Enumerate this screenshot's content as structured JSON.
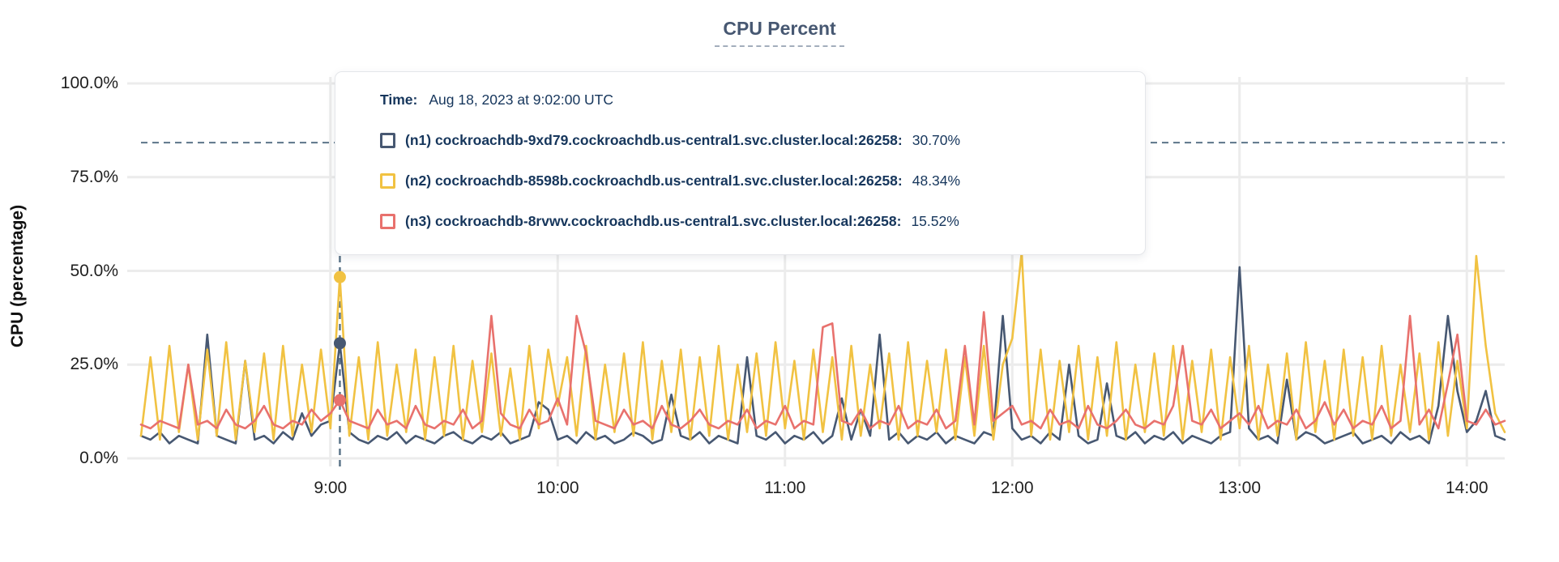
{
  "title": "CPU Percent",
  "y_axis": {
    "label": "CPU (percentage)",
    "ticks": [
      "0.0%",
      "25.0%",
      "50.0%",
      "75.0%",
      "100.0%"
    ]
  },
  "x_axis": {
    "ticks": [
      "9:00",
      "10:00",
      "11:00",
      "12:00",
      "13:00",
      "14:00"
    ]
  },
  "tooltip": {
    "time_label": "Time:",
    "time_value": "Aug 18, 2023 at 9:02:00 UTC",
    "rows": [
      {
        "series": "n1",
        "label": "(n1) cockroachdb-9xd79.cockroachdb.us-central1.svc.cluster.local:26258:",
        "value": "30.70%",
        "color": "#475872"
      },
      {
        "series": "n2",
        "label": "(n2) cockroachdb-8598b.cockroachdb.us-central1.svc.cluster.local:26258:",
        "value": "48.34%",
        "color": "#F1C242"
      },
      {
        "series": "n3",
        "label": "(n3) cockroachdb-8rvwv.cockroachdb.us-central1.svc.cluster.local:26258:",
        "value": "15.52%",
        "color": "#E8716D"
      }
    ]
  },
  "colors": {
    "title": "#475872",
    "grid": "#ececec",
    "crosshair": "#5c7589",
    "tooltip_text": "#16365c",
    "series_n1": "#475872",
    "series_n2": "#F1C242",
    "series_n3": "#E8716D"
  },
  "chart_data": {
    "type": "line",
    "title": "CPU Percent",
    "xlabel": "",
    "ylabel": "CPU (percentage)",
    "ylim": [
      0,
      100
    ],
    "grid": true,
    "legend_position": "tooltip-overlay",
    "x_start_time": "8:10",
    "x_end_time": "14:10",
    "x_step_minutes": 2.5,
    "x_tick_labels": [
      "9:00",
      "10:00",
      "11:00",
      "12:00",
      "13:00",
      "14:00"
    ],
    "x_tick_indices": [
      20,
      44,
      68,
      92,
      116,
      140
    ],
    "y_tick_values": [
      0,
      25,
      50,
      75,
      100
    ],
    "y_tick_labels": [
      "0.0%",
      "25.0%",
      "50.0%",
      "75.0%",
      "100.0%"
    ],
    "hover": {
      "index": 21,
      "time": "Aug 18, 2023 at 9:02:00 UTC",
      "values": {
        "n1": 30.7,
        "n2": 48.34,
        "n3": 15.52
      },
      "crosshair_y_percent": 84.2
    },
    "series": [
      {
        "name": "n1",
        "label": "(n1) cockroachdb-9xd79.cockroachdb.us-central1.svc.cluster.local:26258",
        "color": "#475872",
        "values": [
          6,
          5,
          7,
          4,
          6,
          5,
          4,
          33,
          6,
          5,
          4,
          26,
          5,
          6,
          4,
          7,
          5,
          12,
          6,
          9,
          10,
          30.7,
          7,
          5,
          4,
          6,
          5,
          7,
          4,
          6,
          5,
          4,
          6,
          7,
          5,
          4,
          6,
          5,
          7,
          4,
          5,
          6,
          15,
          13,
          5,
          6,
          4,
          7,
          5,
          6,
          4,
          5,
          7,
          6,
          4,
          5,
          17,
          6,
          5,
          7,
          4,
          6,
          5,
          4,
          27,
          6,
          5,
          7,
          4,
          6,
          5,
          7,
          4,
          6,
          16,
          5,
          13,
          6,
          33,
          5,
          7,
          4,
          6,
          5,
          7,
          4,
          6,
          5,
          4,
          7,
          6,
          38,
          8,
          5,
          6,
          4,
          7,
          5,
          25,
          6,
          4,
          5,
          20,
          6,
          5,
          7,
          4,
          6,
          5,
          7,
          4,
          6,
          5,
          4,
          6,
          7,
          51,
          8,
          5,
          6,
          4,
          21,
          5,
          7,
          6,
          4,
          5,
          6,
          7,
          4,
          5,
          6,
          4,
          7,
          5,
          6,
          4,
          14,
          38,
          18,
          7,
          10,
          18,
          6,
          5
        ]
      },
      {
        "name": "n2",
        "label": "(n2) cockroachdb-8598b.cockroachdb.us-central1.svc.cluster.local:26258",
        "color": "#F1C242",
        "values": [
          6,
          27,
          5,
          30,
          7,
          25,
          5,
          29,
          6,
          31,
          5,
          26,
          7,
          28,
          5,
          30,
          6,
          25,
          7,
          29,
          8,
          48.3,
          6,
          27,
          5,
          31,
          6,
          25,
          7,
          29,
          5,
          27,
          6,
          30,
          5,
          26,
          7,
          28,
          6,
          24,
          5,
          30,
          8,
          29,
          14,
          27,
          6,
          30,
          5,
          25,
          7,
          28,
          6,
          31,
          5,
          26,
          7,
          29,
          5,
          27,
          6,
          30,
          5,
          25,
          7,
          28,
          6,
          31,
          8,
          26,
          5,
          29,
          7,
          27,
          5,
          30,
          6,
          25,
          8,
          28,
          5,
          31,
          6,
          26,
          7,
          29,
          5,
          27,
          6,
          30,
          5,
          25,
          32,
          55,
          6,
          29,
          5,
          26,
          7,
          30,
          5,
          27,
          6,
          31,
          5,
          25,
          7,
          28,
          6,
          30,
          5,
          26,
          7,
          29,
          5,
          27,
          8,
          30,
          5,
          25,
          6,
          28,
          5,
          31,
          7,
          26,
          5,
          29,
          6,
          27,
          5,
          30,
          6,
          25,
          7,
          28,
          5,
          31,
          6,
          26,
          8,
          54,
          30,
          12,
          7
        ]
      },
      {
        "name": "n3",
        "label": "(n3) cockroachdb-8rvwv.cockroachdb.us-central1.svc.cluster.local:26258",
        "color": "#E8716D",
        "values": [
          9,
          8,
          10,
          9,
          8,
          25,
          9,
          10,
          8,
          13,
          9,
          8,
          10,
          14,
          9,
          8,
          10,
          9,
          13,
          10,
          12,
          15.5,
          10,
          9,
          8,
          13,
          9,
          10,
          8,
          14,
          9,
          8,
          10,
          9,
          13,
          8,
          10,
          38,
          12,
          9,
          8,
          13,
          9,
          10,
          16,
          9,
          38,
          28,
          10,
          9,
          8,
          13,
          9,
          10,
          8,
          14,
          9,
          8,
          10,
          13,
          9,
          8,
          10,
          9,
          13,
          8,
          10,
          9,
          14,
          8,
          10,
          9,
          35,
          36,
          10,
          9,
          13,
          8,
          10,
          9,
          14,
          8,
          10,
          9,
          13,
          8,
          10,
          30,
          9,
          39,
          10,
          12,
          14,
          9,
          10,
          8,
          13,
          9,
          10,
          8,
          14,
          9,
          8,
          10,
          13,
          9,
          8,
          10,
          9,
          14,
          30,
          10,
          9,
          13,
          8,
          10,
          12,
          9,
          14,
          8,
          10,
          9,
          13,
          8,
          10,
          15,
          9,
          13,
          8,
          10,
          9,
          14,
          8,
          10,
          38,
          9,
          13,
          8,
          20,
          33,
          10,
          9,
          13,
          9,
          10
        ]
      }
    ]
  }
}
